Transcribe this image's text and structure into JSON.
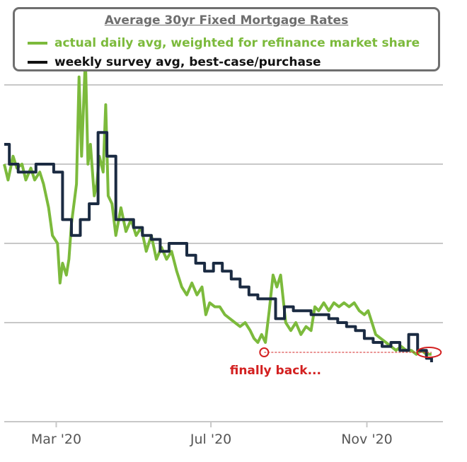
{
  "chart_data": {
    "type": "line",
    "title": "Average 30yr Fixed Mortgage Rates",
    "x_tick_labels": [
      "Mar '20",
      "Jul '20",
      "Nov '20"
    ],
    "x_ticks": [
      "2020-03-01",
      "2020-07-01",
      "2020-11-01"
    ],
    "x_range": [
      "2020-01-20",
      "2020-12-31"
    ],
    "y_range": [
      2.95,
      4.0
    ],
    "y_gridlines": [
      3.2,
      3.4,
      3.6,
      3.8
    ],
    "grid": "horizontal",
    "legend_position": "top",
    "series": [
      {
        "name": "actual daily avg, weighted for refinance market share",
        "color": "#7cba3c",
        "points": [
          [
            "2020-01-20",
            3.6
          ],
          [
            "2020-01-23",
            3.56
          ],
          [
            "2020-01-27",
            3.62
          ],
          [
            "2020-01-30",
            3.59
          ],
          [
            "2020-02-03",
            3.6
          ],
          [
            "2020-02-06",
            3.56
          ],
          [
            "2020-02-10",
            3.59
          ],
          [
            "2020-02-13",
            3.56
          ],
          [
            "2020-02-17",
            3.58
          ],
          [
            "2020-02-20",
            3.55
          ],
          [
            "2020-02-24",
            3.49
          ],
          [
            "2020-02-27",
            3.42
          ],
          [
            "2020-03-02",
            3.4
          ],
          [
            "2020-03-04",
            3.3
          ],
          [
            "2020-03-06",
            3.35
          ],
          [
            "2020-03-09",
            3.32
          ],
          [
            "2020-03-11",
            3.36
          ],
          [
            "2020-03-13",
            3.45
          ],
          [
            "2020-03-17",
            3.55
          ],
          [
            "2020-03-19",
            3.82
          ],
          [
            "2020-03-21",
            3.62
          ],
          [
            "2020-03-24",
            3.87
          ],
          [
            "2020-03-26",
            3.6
          ],
          [
            "2020-03-28",
            3.65
          ],
          [
            "2020-03-31",
            3.52
          ],
          [
            "2020-04-02",
            3.55
          ],
          [
            "2020-04-04",
            3.62
          ],
          [
            "2020-04-07",
            3.58
          ],
          [
            "2020-04-09",
            3.75
          ],
          [
            "2020-04-11",
            3.52
          ],
          [
            "2020-04-14",
            3.5
          ],
          [
            "2020-04-17",
            3.42
          ],
          [
            "2020-04-21",
            3.49
          ],
          [
            "2020-04-25",
            3.43
          ],
          [
            "2020-04-29",
            3.46
          ],
          [
            "2020-05-03",
            3.42
          ],
          [
            "2020-05-07",
            3.44
          ],
          [
            "2020-05-11",
            3.38
          ],
          [
            "2020-05-15",
            3.42
          ],
          [
            "2020-05-19",
            3.36
          ],
          [
            "2020-05-23",
            3.39
          ],
          [
            "2020-05-27",
            3.36
          ],
          [
            "2020-05-31",
            3.38
          ],
          [
            "2020-06-04",
            3.33
          ],
          [
            "2020-06-08",
            3.29
          ],
          [
            "2020-06-12",
            3.27
          ],
          [
            "2020-06-16",
            3.3
          ],
          [
            "2020-06-20",
            3.27
          ],
          [
            "2020-06-24",
            3.29
          ],
          [
            "2020-06-27",
            3.22
          ],
          [
            "2020-06-30",
            3.25
          ],
          [
            "2020-07-04",
            3.24
          ],
          [
            "2020-07-08",
            3.24
          ],
          [
            "2020-07-12",
            3.22
          ],
          [
            "2020-07-16",
            3.21
          ],
          [
            "2020-07-20",
            3.2
          ],
          [
            "2020-07-24",
            3.19
          ],
          [
            "2020-07-28",
            3.2
          ],
          [
            "2020-08-01",
            3.18
          ],
          [
            "2020-08-04",
            3.16
          ],
          [
            "2020-08-07",
            3.15
          ],
          [
            "2020-08-10",
            3.17
          ],
          [
            "2020-08-13",
            3.15
          ],
          [
            "2020-08-16",
            3.23
          ],
          [
            "2020-08-19",
            3.32
          ],
          [
            "2020-08-22",
            3.29
          ],
          [
            "2020-08-25",
            3.32
          ],
          [
            "2020-08-29",
            3.2
          ],
          [
            "2020-09-02",
            3.18
          ],
          [
            "2020-09-06",
            3.2
          ],
          [
            "2020-09-10",
            3.17
          ],
          [
            "2020-09-14",
            3.19
          ],
          [
            "2020-09-18",
            3.18
          ],
          [
            "2020-09-21",
            3.24
          ],
          [
            "2020-09-24",
            3.23
          ],
          [
            "2020-09-28",
            3.25
          ],
          [
            "2020-10-02",
            3.23
          ],
          [
            "2020-10-06",
            3.25
          ],
          [
            "2020-10-10",
            3.24
          ],
          [
            "2020-10-14",
            3.25
          ],
          [
            "2020-10-18",
            3.24
          ],
          [
            "2020-10-22",
            3.25
          ],
          [
            "2020-10-26",
            3.23
          ],
          [
            "2020-10-30",
            3.22
          ],
          [
            "2020-11-02",
            3.23
          ],
          [
            "2020-11-05",
            3.2
          ],
          [
            "2020-11-08",
            3.17
          ],
          [
            "2020-11-12",
            3.16
          ],
          [
            "2020-11-16",
            3.15
          ],
          [
            "2020-11-20",
            3.14
          ],
          [
            "2020-11-24",
            3.13
          ],
          [
            "2020-11-28",
            3.14
          ],
          [
            "2020-12-02",
            3.13
          ],
          [
            "2020-12-06",
            3.13
          ],
          [
            "2020-12-10",
            3.12
          ],
          [
            "2020-12-14",
            3.13
          ],
          [
            "2020-12-18",
            3.12
          ],
          [
            "2020-12-22",
            3.12
          ]
        ]
      },
      {
        "name": "weekly survey avg, best-case/purchase",
        "color": "#1b2b42",
        "step": true,
        "points": [
          [
            "2020-01-20",
            3.65
          ],
          [
            "2020-01-24",
            3.6
          ],
          [
            "2020-01-31",
            3.58
          ],
          [
            "2020-02-07",
            3.58
          ],
          [
            "2020-02-14",
            3.6
          ],
          [
            "2020-02-21",
            3.6
          ],
          [
            "2020-02-28",
            3.58
          ],
          [
            "2020-03-06",
            3.46
          ],
          [
            "2020-03-13",
            3.42
          ],
          [
            "2020-03-20",
            3.46
          ],
          [
            "2020-03-27",
            3.5
          ],
          [
            "2020-04-03",
            3.68
          ],
          [
            "2020-04-10",
            3.62
          ],
          [
            "2020-04-17",
            3.46
          ],
          [
            "2020-04-24",
            3.46
          ],
          [
            "2020-05-01",
            3.44
          ],
          [
            "2020-05-08",
            3.42
          ],
          [
            "2020-05-15",
            3.41
          ],
          [
            "2020-05-22",
            3.38
          ],
          [
            "2020-05-29",
            3.4
          ],
          [
            "2020-06-05",
            3.4
          ],
          [
            "2020-06-12",
            3.37
          ],
          [
            "2020-06-19",
            3.35
          ],
          [
            "2020-06-26",
            3.33
          ],
          [
            "2020-07-03",
            3.35
          ],
          [
            "2020-07-10",
            3.33
          ],
          [
            "2020-07-17",
            3.31
          ],
          [
            "2020-07-24",
            3.29
          ],
          [
            "2020-07-31",
            3.27
          ],
          [
            "2020-08-07",
            3.26
          ],
          [
            "2020-08-14",
            3.26
          ],
          [
            "2020-08-21",
            3.21
          ],
          [
            "2020-08-28",
            3.24
          ],
          [
            "2020-09-04",
            3.23
          ],
          [
            "2020-09-11",
            3.23
          ],
          [
            "2020-09-18",
            3.22
          ],
          [
            "2020-09-25",
            3.22
          ],
          [
            "2020-10-02",
            3.21
          ],
          [
            "2020-10-09",
            3.2
          ],
          [
            "2020-10-16",
            3.19
          ],
          [
            "2020-10-23",
            3.18
          ],
          [
            "2020-10-30",
            3.16
          ],
          [
            "2020-11-06",
            3.15
          ],
          [
            "2020-11-13",
            3.14
          ],
          [
            "2020-11-20",
            3.15
          ],
          [
            "2020-11-27",
            3.13
          ],
          [
            "2020-12-04",
            3.17
          ],
          [
            "2020-12-11",
            3.13
          ],
          [
            "2020-12-18",
            3.11
          ],
          [
            "2020-12-22",
            3.1
          ]
        ]
      }
    ],
    "annotation": {
      "text": "finally back...",
      "color": "#d32020",
      "reference_value": 3.125,
      "reference_from": "2020-08-12",
      "reference_to": "2020-12-22",
      "circle_dates": [
        "2020-08-12",
        "2020-12-20"
      ]
    }
  }
}
